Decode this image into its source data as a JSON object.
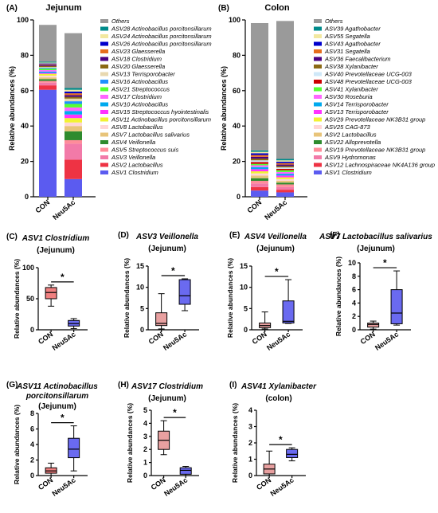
{
  "chart_data": [
    {
      "type": "bar",
      "stacked": true,
      "panel": "(A)",
      "title": "Jejunum",
      "ylabel": "Relative abundances (%)",
      "ylim": [
        0,
        100
      ],
      "yticks": [
        0,
        20,
        40,
        60,
        80,
        100
      ],
      "categories": [
        "CON",
        "Neu5Ac"
      ],
      "legend_position": "right",
      "series": [
        {
          "name": "ASV1 Clostridium",
          "color": "#5b5bf0",
          "values": [
            60.5,
            10
          ]
        },
        {
          "name": "ASV2 Lactobacillus",
          "color": "#ee3344",
          "values": [
            2.5,
            11
          ]
        },
        {
          "name": "ASV3 Veillonella",
          "color": "#f27aa8",
          "values": [
            1.5,
            9
          ]
        },
        {
          "name": "ASV5 Streptococcus suis",
          "color": "#ff8c9a",
          "values": [
            1,
            2
          ]
        },
        {
          "name": "ASV4 Veillonella",
          "color": "#2e8b2e",
          "values": [
            1,
            5
          ]
        },
        {
          "name": "ASV7 Lactobacillus salivarius",
          "color": "#e8c47a",
          "values": [
            1,
            3
          ]
        },
        {
          "name": "ASV8 Lactobacillus",
          "color": "#ffd6d6",
          "values": [
            1,
            2
          ]
        },
        {
          "name": "ASV11 Actinobacillus porcitonsillarum",
          "color": "#f2f233",
          "values": [
            1,
            2.5
          ]
        },
        {
          "name": "ASV15 Streptococcus hyointestinalis",
          "color": "#ff33ff",
          "values": [
            0.5,
            2
          ]
        },
        {
          "name": "ASV10 Actinobacillus",
          "color": "#00aaee",
          "values": [
            0.8,
            2
          ]
        },
        {
          "name": "ASV17 Clostridium",
          "color": "#ff66ff",
          "values": [
            0.8,
            2
          ]
        },
        {
          "name": "ASV21 Streptococcus",
          "color": "#55ff33",
          "values": [
            0.8,
            2
          ]
        },
        {
          "name": "ASV16 Actinobacillus",
          "color": "#1e90ff",
          "values": [
            0.5,
            1.5
          ]
        },
        {
          "name": "ASV13 Terrisporobacter",
          "color": "#e8d8b0",
          "values": [
            0.5,
            1.5
          ]
        },
        {
          "name": "ASV20 Glaesserella",
          "color": "#8b6914",
          "values": [
            0.5,
            1
          ]
        },
        {
          "name": "ASV18 Clostridium",
          "color": "#4b0082",
          "values": [
            0.5,
            1
          ]
        },
        {
          "name": "ASV23 Glaesserella",
          "color": "#e66e1e",
          "values": [
            0.5,
            1
          ]
        },
        {
          "name": "ASV26 Actinobacillus porcitonsillarum",
          "color": "#0000cc",
          "values": [
            0.5,
            1
          ]
        },
        {
          "name": "ASV24 Actinobacillus porcitonsillarum",
          "color": "#f2e8a0",
          "values": [
            0.5,
            1
          ]
        },
        {
          "name": "ASV28 Actinobacillus porcitonsillarum",
          "color": "#008b8b",
          "values": [
            0.5,
            1
          ]
        },
        {
          "name": "Others",
          "color": "#9a9a9a",
          "values": [
            20.8,
            31
          ]
        }
      ]
    },
    {
      "type": "bar",
      "stacked": true,
      "panel": "(B)",
      "title": "Colon",
      "ylabel": "Relative abundances (%)",
      "ylim": [
        0,
        100
      ],
      "yticks": [
        0,
        20,
        40,
        60,
        80,
        100
      ],
      "categories": [
        "CON",
        "Neu5Ac"
      ],
      "legend_position": "right",
      "series": [
        {
          "name": "ASV1 Clostridium",
          "color": "#5b5bf0",
          "values": [
            3.5,
            2.5
          ]
        },
        {
          "name": "ASV12 Lachnospiraceae NK4A136 group",
          "color": "#ee3344",
          "values": [
            2,
            1.5
          ]
        },
        {
          "name": "ASV9 Hydromonas",
          "color": "#f27aa8",
          "values": [
            2,
            1.5
          ]
        },
        {
          "name": "ASV19 Prevotellaceae NK3B31 group",
          "color": "#ff8c9a",
          "values": [
            1.5,
            1.5
          ]
        },
        {
          "name": "ASV22 Alloprevotella",
          "color": "#2e8b2e",
          "values": [
            1.5,
            1
          ]
        },
        {
          "name": "ASV2 Lactobacillus",
          "color": "#e8c47a",
          "values": [
            1.5,
            1
          ]
        },
        {
          "name": "ASV25 CAG-873",
          "color": "#ffd6d6",
          "values": [
            1.2,
            1
          ]
        },
        {
          "name": "ASV29 Prevotellaceae NK3B31 group",
          "color": "#f2f233",
          "values": [
            1.2,
            1
          ]
        },
        {
          "name": "ASV13 Terrisporobacter",
          "color": "#ff33ff",
          "values": [
            1.2,
            1
          ]
        },
        {
          "name": "ASV14 Terrisporobacter",
          "color": "#00aaee",
          "values": [
            1.2,
            1
          ]
        },
        {
          "name": "ASV30 Roseburia",
          "color": "#ff66ff",
          "values": [
            1,
            1
          ]
        },
        {
          "name": "ASV41 Xylanibacter",
          "color": "#55ff33",
          "values": [
            0.8,
            1
          ]
        },
        {
          "name": "ASV48 Prevotellaceae UCG-003",
          "color": "#cc0000",
          "values": [
            1,
            0.8
          ]
        },
        {
          "name": "ASV40 Prevotellaceae UCG-003",
          "color": "#cfe8f8",
          "values": [
            1,
            0.8
          ]
        },
        {
          "name": "ASV38 Xylanibacter",
          "color": "#8b6914",
          "values": [
            1,
            0.8
          ]
        },
        {
          "name": "ASV36 Faecalibacterium",
          "color": "#4b0082",
          "values": [
            1,
            0.8
          ]
        },
        {
          "name": "ASV31 Segatella",
          "color": "#e66e1e",
          "values": [
            1,
            0.8
          ]
        },
        {
          "name": "ASV43 Agathobacter",
          "color": "#0000cc",
          "values": [
            1,
            0.8
          ]
        },
        {
          "name": "ASV55 Segatella",
          "color": "#f2e8a0",
          "values": [
            0.8,
            0.8
          ]
        },
        {
          "name": "ASV39 Agathobacter",
          "color": "#008b8b",
          "values": [
            0.8,
            0.8
          ]
        },
        {
          "name": "Others",
          "color": "#9a9a9a",
          "values": [
            72,
            78
          ]
        }
      ]
    },
    {
      "type": "box",
      "panel": "(C)",
      "title": "ASV1 Clostridium",
      "subtitle": "(Jejunum)",
      "ylabel": "Relative abundances (%)",
      "ylim": [
        0,
        100
      ],
      "yticks": [
        0,
        50,
        100
      ],
      "categories": [
        "CON",
        "Neu5Ac"
      ],
      "significance": "*",
      "boxes": [
        {
          "min": 38,
          "q1": 50,
          "median": 60,
          "q3": 68,
          "max": 72,
          "color": "#f08080"
        },
        {
          "min": 2,
          "q1": 6,
          "median": 10,
          "q3": 15,
          "max": 18,
          "color": "#6a6af0"
        }
      ]
    },
    {
      "type": "box",
      "panel": "(D)",
      "title": "ASV3 Veillonella",
      "subtitle": "(Jejunum)",
      "ylabel": "Relative abundances (%)",
      "ylim": [
        0,
        15
      ],
      "yticks": [
        0,
        5,
        10,
        15
      ],
      "categories": [
        "CON",
        "Neu5Ac"
      ],
      "significance": "*",
      "boxes": [
        {
          "min": 0.2,
          "q1": 1,
          "median": 1.5,
          "q3": 4,
          "max": 8.5,
          "color": "#e8a0a0"
        },
        {
          "min": 4.5,
          "q1": 6,
          "median": 8,
          "q3": 11.8,
          "max": 12,
          "color": "#6a6af0"
        }
      ]
    },
    {
      "type": "box",
      "panel": "(E)",
      "title": "ASV4 Veillonella",
      "subtitle": "(Jejunum)",
      "ylabel": "Relative abundances (%)",
      "ylim": [
        0,
        15
      ],
      "yticks": [
        0,
        5,
        10,
        15
      ],
      "categories": [
        "CON",
        "Neu5Ac"
      ],
      "significance": "*",
      "boxes": [
        {
          "min": 0.2,
          "q1": 0.5,
          "median": 1,
          "q3": 1.6,
          "max": 4.2,
          "color": "#e8a0a0"
        },
        {
          "min": 1.5,
          "q1": 1.6,
          "median": 2,
          "q3": 6.8,
          "max": 11.8,
          "color": "#6a6af0"
        }
      ]
    },
    {
      "type": "box",
      "panel": "(F)",
      "title": "ASV7 Lactobacillus salivarius",
      "subtitle": "(Jejunum)",
      "ylabel": "Relative abundances (%)",
      "ylim": [
        0,
        10
      ],
      "yticks": [
        0,
        2,
        4,
        6,
        8,
        10
      ],
      "categories": [
        "CON",
        "Neu5Ac"
      ],
      "significance": "*",
      "boxes": [
        {
          "min": 0.1,
          "q1": 0.4,
          "median": 0.8,
          "q3": 1,
          "max": 1.3,
          "color": "#e8a0a0"
        },
        {
          "min": 0.7,
          "q1": 0.9,
          "median": 2.5,
          "q3": 6,
          "max": 8.8,
          "color": "#6a6af0"
        }
      ]
    },
    {
      "type": "box",
      "panel": "(G)",
      "title": "ASV11 Actinobacillus",
      "title_line2": "porcitonsillarum",
      "subtitle": "(Jejunum)",
      "ylabel": "Relative abundances (%)",
      "ylim": [
        0,
        8
      ],
      "yticks": [
        0,
        2,
        4,
        6,
        8
      ],
      "categories": [
        "CON",
        "Neu5Ac"
      ],
      "significance": "*",
      "boxes": [
        {
          "min": 0,
          "q1": 0.3,
          "median": 0.6,
          "q3": 1,
          "max": 1.6,
          "color": "#f08080"
        },
        {
          "min": 0.6,
          "q1": 2.3,
          "median": 3.4,
          "q3": 4.8,
          "max": 6.4,
          "color": "#6a6af0"
        }
      ]
    },
    {
      "type": "box",
      "panel": "(H)",
      "title": "ASV17 Clostridium",
      "subtitle": "(Jejunum)",
      "ylabel": "Relative abundances (%)",
      "ylim": [
        0,
        5
      ],
      "yticks": [
        0,
        1,
        2,
        3,
        4,
        5
      ],
      "categories": [
        "CON",
        "Neu5Ac"
      ],
      "significance": "*",
      "boxes": [
        {
          "min": 1.6,
          "q1": 2,
          "median": 2.7,
          "q3": 3.4,
          "max": 4.2,
          "color": "#e8a0a0"
        },
        {
          "min": 0,
          "q1": 0.1,
          "median": 0.4,
          "q3": 0.6,
          "max": 0.7,
          "color": "#6a6af0"
        }
      ]
    },
    {
      "type": "box",
      "panel": "(I)",
      "title": "ASV41 Xylanibacter",
      "subtitle": "(colon)",
      "ylabel": "Relative abundances (%)",
      "ylim": [
        0,
        4
      ],
      "yticks": [
        0,
        1,
        2,
        3,
        4
      ],
      "categories": [
        "CON",
        "Neu5Ac"
      ],
      "significance": "*",
      "boxes": [
        {
          "min": 0,
          "q1": 0.1,
          "median": 0.4,
          "q3": 0.7,
          "max": 1.5,
          "color": "#e8a0a0"
        },
        {
          "min": 0.9,
          "q1": 1.1,
          "median": 1.3,
          "q3": 1.6,
          "max": 1.7,
          "color": "#6a6af0"
        }
      ]
    }
  ]
}
